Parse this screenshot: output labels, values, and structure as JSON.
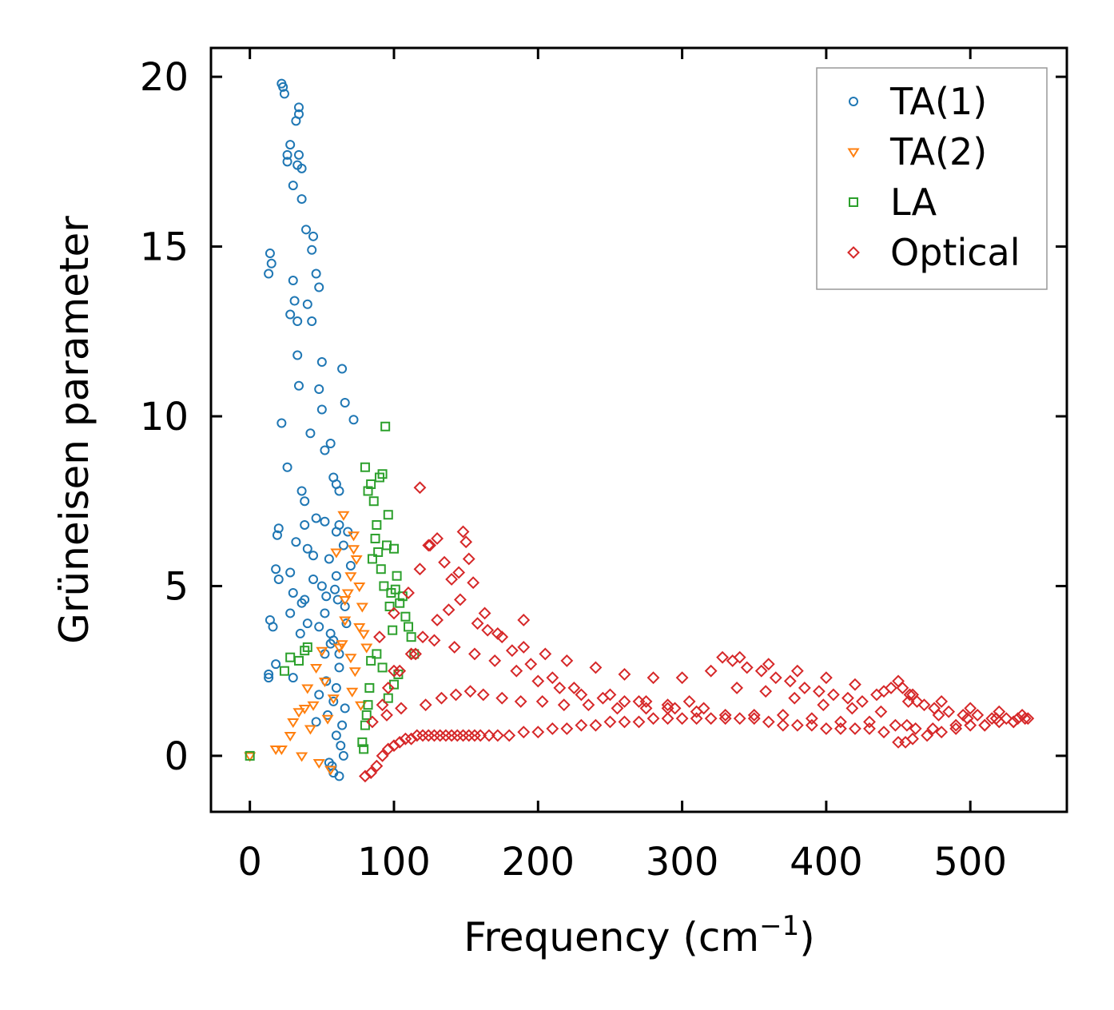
{
  "chart_data": {
    "type": "scatter",
    "title": "",
    "xlabel": "Frequency (cm",
    "xlabel_sup": "−1",
    "xlabel_close": ")",
    "ylabel": "Grüneisen parameter",
    "xlim": [
      -27,
      567
    ],
    "ylim": [
      -1.65,
      20.85
    ],
    "xticks": [
      0,
      100,
      200,
      300,
      400,
      500
    ],
    "xtick_labels": [
      "0",
      "100",
      "200",
      "300",
      "400",
      "500"
    ],
    "yticks": [
      0,
      5,
      10,
      15,
      20
    ],
    "ytick_labels": [
      "0",
      "5",
      "10",
      "15",
      "20"
    ],
    "grid": false,
    "legend_position": "top-right",
    "series": [
      {
        "name": "TA(1)",
        "marker": "circle",
        "color": "#1f77b4",
        "x": [
          22,
          24,
          23,
          34,
          34,
          32,
          28,
          26,
          26,
          34,
          33,
          36,
          30,
          14,
          15,
          13,
          36,
          39,
          44,
          43,
          46,
          48,
          30,
          28,
          40,
          43,
          22,
          26,
          48,
          50,
          33,
          34,
          52,
          42,
          56,
          33,
          31,
          50,
          58,
          60,
          62,
          20,
          19,
          38,
          36,
          46,
          64,
          66,
          72,
          18,
          40,
          52,
          60,
          62,
          68,
          14,
          16,
          28,
          38,
          44,
          55,
          65,
          70,
          30,
          36,
          48,
          58,
          62,
          13,
          13,
          18,
          30,
          35,
          40,
          20,
          28,
          38,
          32,
          44,
          50,
          52,
          56,
          62,
          60,
          58,
          54,
          48,
          46,
          60,
          63,
          65,
          55,
          57,
          58,
          62,
          64,
          66,
          53,
          52,
          56,
          66,
          59,
          60,
          61,
          67,
          53
        ],
        "y": [
          19.8,
          19.5,
          19.7,
          19.1,
          18.9,
          18.7,
          18.0,
          17.5,
          17.7,
          17.7,
          17.4,
          17.3,
          16.8,
          14.8,
          14.5,
          14.2,
          16.4,
          15.5,
          15.3,
          14.9,
          14.2,
          13.8,
          14.0,
          13.0,
          13.3,
          12.8,
          9.8,
          8.5,
          10.8,
          11.6,
          11.8,
          10.9,
          9.0,
          9.5,
          9.2,
          12.8,
          13.4,
          10.2,
          8.2,
          8.0,
          7.8,
          6.7,
          6.5,
          7.5,
          7.8,
          7.0,
          11.4,
          10.4,
          9.9,
          5.5,
          6.1,
          6.9,
          6.6,
          6.8,
          6.6,
          4.0,
          3.8,
          4.2,
          4.6,
          5.2,
          5.8,
          6.2,
          5.6,
          4.8,
          4.5,
          3.8,
          3.4,
          3.0,
          2.4,
          2.3,
          2.7,
          2.3,
          3.6,
          3.9,
          5.2,
          5.4,
          6.8,
          6.3,
          5.9,
          5.0,
          4.2,
          3.3,
          2.6,
          2.0,
          1.6,
          1.2,
          1.8,
          1.0,
          0.6,
          0.3,
          0.0,
          -0.2,
          -0.3,
          -0.5,
          -0.6,
          0.9,
          1.4,
          2.2,
          3.0,
          3.6,
          4.4,
          4.9,
          5.3,
          4.6,
          3.9,
          4.7
        ]
      },
      {
        "name": "TA(2)",
        "marker": "triangle-down",
        "color": "#ff7f0e",
        "x": [
          0,
          18,
          22,
          28,
          36,
          48,
          56,
          30,
          34,
          40,
          46,
          50,
          44,
          52,
          58,
          62,
          66,
          68,
          70,
          72,
          74,
          76,
          78,
          66,
          64,
          70,
          54,
          42,
          38,
          60,
          65,
          72,
          76,
          79,
          81,
          73,
          71,
          77
        ],
        "y": [
          0.0,
          0.2,
          0.2,
          0.6,
          0.0,
          -0.2,
          -0.4,
          1.0,
          1.3,
          2.0,
          2.6,
          3.1,
          1.5,
          2.2,
          1.7,
          3.2,
          4.0,
          4.8,
          5.3,
          6.1,
          5.8,
          5.0,
          4.4,
          4.6,
          3.3,
          2.9,
          1.1,
          0.8,
          1.4,
          6.0,
          7.1,
          6.5,
          3.8,
          3.6,
          3.2,
          2.5,
          1.9,
          1.5
        ]
      },
      {
        "name": "LA",
        "marker": "square",
        "color": "#2ca02c",
        "x": [
          0,
          24,
          28,
          34,
          38,
          40,
          80,
          82,
          84,
          86,
          88,
          90,
          92,
          94,
          95,
          96,
          98,
          100,
          102,
          104,
          106,
          108,
          110,
          112,
          114,
          100,
          96,
          92,
          88,
          84,
          82,
          80,
          79,
          78,
          81,
          83,
          85,
          87,
          89,
          91,
          93,
          97,
          99,
          101,
          103
        ],
        "y": [
          0.0,
          2.5,
          2.9,
          2.8,
          3.1,
          3.2,
          8.5,
          7.8,
          8.0,
          7.5,
          6.8,
          8.2,
          8.3,
          9.7,
          6.2,
          7.1,
          4.8,
          6.1,
          5.3,
          4.5,
          4.7,
          4.1,
          3.8,
          3.5,
          3.0,
          2.1,
          1.7,
          2.6,
          3.0,
          2.8,
          1.5,
          0.9,
          0.2,
          0.4,
          1.2,
          2.0,
          5.8,
          6.4,
          6.0,
          5.5,
          5.0,
          4.4,
          3.7,
          4.9,
          2.4
        ]
      },
      {
        "name": "Optical",
        "marker": "diamond",
        "color": "#d62728",
        "x": [
          80,
          84,
          88,
          92,
          96,
          100,
          104,
          108,
          112,
          116,
          120,
          124,
          128,
          132,
          136,
          140,
          144,
          148,
          152,
          156,
          160,
          166,
          172,
          180,
          190,
          200,
          210,
          220,
          230,
          240,
          250,
          260,
          270,
          280,
          290,
          300,
          310,
          320,
          330,
          340,
          350,
          360,
          370,
          380,
          390,
          400,
          410,
          420,
          430,
          440,
          450,
          455,
          460,
          470,
          480,
          490,
          500,
          510,
          520,
          530,
          538,
          90,
          100,
          110,
          118,
          125,
          130,
          135,
          140,
          145,
          150,
          152,
          158,
          165,
          175,
          190,
          205,
          220,
          240,
          260,
          280,
          300,
          320,
          340,
          360,
          380,
          400,
          420,
          440,
          460,
          480,
          500,
          520,
          536,
          100,
          115,
          128,
          142,
          156,
          170,
          185,
          200,
          215,
          230,
          245,
          260,
          275,
          290,
          305,
          328,
          335,
          345,
          355,
          365,
          375,
          385,
          395,
          405,
          415,
          425,
          435,
          445,
          450,
          453,
          458,
          463,
          468,
          475,
          485,
          495,
          505,
          515,
          525,
          533,
          540,
          92,
          96,
          104,
          112,
          120,
          130,
          138,
          146,
          155,
          163,
          172,
          182,
          195,
          210,
          225,
          250,
          270,
          290,
          310,
          330,
          350,
          370,
          390,
          410,
          430,
          448,
          456,
          462,
          474,
          490,
          510,
          530,
          118,
          124,
          148,
          190,
          85,
          95,
          105,
          122,
          133,
          143,
          153,
          162,
          175,
          188,
          203,
          218,
          235,
          255,
          275,
          295,
          315,
          338,
          358,
          378,
          398,
          418,
          438,
          457,
          478,
          498,
          518
        ],
        "y": [
          -0.6,
          -0.5,
          -0.3,
          0.0,
          0.2,
          0.3,
          0.4,
          0.5,
          0.5,
          0.6,
          0.6,
          0.6,
          0.6,
          0.6,
          0.6,
          0.6,
          0.6,
          0.6,
          0.6,
          0.6,
          0.6,
          0.6,
          0.6,
          0.6,
          0.7,
          0.7,
          0.8,
          0.8,
          0.9,
          0.9,
          1.0,
          1.0,
          1.0,
          1.1,
          1.1,
          1.1,
          1.1,
          1.1,
          1.1,
          1.1,
          1.1,
          1.0,
          0.9,
          0.9,
          0.9,
          0.8,
          0.8,
          0.8,
          0.8,
          0.7,
          0.4,
          0.4,
          0.5,
          0.6,
          0.7,
          0.8,
          0.9,
          0.9,
          1.0,
          1.0,
          1.1,
          3.5,
          4.2,
          4.8,
          5.5,
          6.2,
          6.4,
          5.7,
          5.2,
          5.4,
          6.3,
          5.8,
          3.9,
          3.7,
          3.5,
          3.2,
          3.0,
          2.8,
          2.6,
          2.4,
          2.3,
          2.3,
          2.5,
          2.9,
          2.7,
          2.5,
          2.3,
          2.1,
          1.9,
          1.8,
          1.6,
          1.4,
          1.3,
          1.2,
          2.5,
          3.0,
          3.4,
          3.2,
          3.0,
          2.8,
          2.5,
          2.2,
          2.0,
          1.8,
          1.7,
          1.6,
          1.6,
          1.5,
          1.6,
          2.9,
          2.8,
          2.6,
          2.5,
          2.3,
          2.2,
          2.0,
          1.9,
          1.8,
          1.7,
          1.6,
          1.8,
          2.0,
          2.2,
          2.0,
          1.8,
          1.6,
          1.5,
          1.4,
          1.3,
          1.2,
          1.2,
          1.1,
          1.1,
          1.1,
          1.1,
          1.5,
          2.0,
          2.5,
          3.0,
          3.5,
          4.0,
          4.3,
          4.6,
          5.1,
          4.2,
          3.6,
          3.1,
          2.7,
          2.3,
          2.0,
          1.8,
          1.6,
          1.4,
          1.3,
          1.2,
          1.2,
          1.2,
          1.1,
          1.0,
          1.0,
          0.9,
          0.9,
          0.8,
          0.8,
          0.9,
          0.9,
          1.0,
          7.9,
          6.2,
          6.6,
          4.0,
          1.0,
          1.2,
          1.4,
          1.5,
          1.7,
          1.8,
          1.9,
          1.8,
          1.7,
          1.6,
          1.6,
          1.5,
          1.5,
          1.4,
          1.4,
          1.4,
          1.4,
          2.0,
          1.9,
          1.7,
          1.5,
          1.4,
          1.3,
          1.6,
          1.2,
          1.1,
          1.1
        ]
      }
    ]
  }
}
